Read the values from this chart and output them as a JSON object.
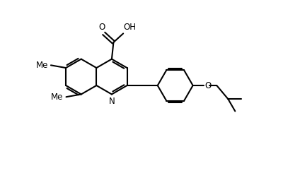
{
  "bg_color": "#ffffff",
  "line_color": "#000000",
  "lw": 1.5,
  "fs": 8.5,
  "fig_width": 4.24,
  "fig_height": 2.52,
  "xlim": [
    0,
    8.5
  ],
  "ylim": [
    0,
    5.0
  ]
}
